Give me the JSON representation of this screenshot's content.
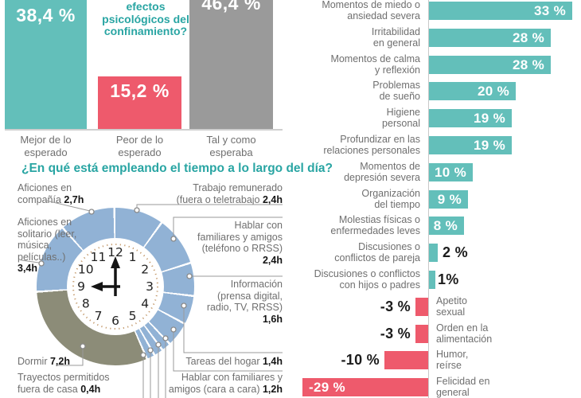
{
  "colors": {
    "teal": "#63bfba",
    "red": "#ee5a6c",
    "gray": "#9a9a9a",
    "blue": "#91b2d5",
    "olive": "#8c8c78",
    "title_teal": "#29a5a3",
    "label_gray": "#6f6f6f",
    "axis_gray": "#c9c9c9"
  },
  "chart_data": [
    {
      "type": "bar",
      "title_visible_lines": [
        "efectos",
        "psicológicos del",
        "confinamiento?"
      ],
      "categories": [
        "Mejor de lo esperado",
        "Peor de lo esperado",
        "Tal y como esperaba"
      ],
      "category_lines": [
        [
          "Mejor de lo",
          "esperado"
        ],
        [
          "Peor de lo",
          "esperado"
        ],
        [
          "Tal y como",
          "esperaba"
        ]
      ],
      "values": [
        38.4,
        15.2,
        46.4
      ],
      "value_labels": [
        "38,4 %",
        "15,2 %",
        "46,4 %"
      ],
      "bar_colors": [
        "#63bfba",
        "#ee5a6c",
        "#9a9a9a"
      ],
      "unit": "%",
      "ylim": [
        0,
        38.4
      ]
    },
    {
      "type": "pie",
      "title": "¿En qué está empleando el tiempo a lo largo del día?",
      "unit": "h",
      "clock_time": "9:00",
      "clock_numbers": [
        "12",
        "1",
        "2",
        "3",
        "4",
        "5",
        "6",
        "7",
        "8",
        "9",
        "10",
        "11"
      ],
      "segments": [
        {
          "label": "Trabajo remunerado (fuera o teletrabajo",
          "hours": 2.4,
          "display": "2,4h",
          "color": "#91b2d5"
        },
        {
          "label": "Hablar con familiares y amigos (teléfono o RRSS)",
          "hours": 2.4,
          "display": "2,4h",
          "color": "#91b2d5"
        },
        {
          "label": "Información (prensa digital, radio, TV, RRSS)",
          "hours": 1.6,
          "display": "1,6h",
          "color": "#91b2d5"
        },
        {
          "label": "Tareas del hogar",
          "hours": 1.4,
          "display": "1,4h",
          "color": "#91b2d5"
        },
        {
          "label": "Hablar con familiares y amigos (cara a cara)",
          "hours": 1.2,
          "display": "1,2h",
          "color": "#91b2d5"
        },
        {
          "label": "",
          "hours": 0.45,
          "display": "",
          "color": "#91b2d5"
        },
        {
          "label": "",
          "hours": 0.45,
          "display": "",
          "color": "#91b2d5"
        },
        {
          "label": "Trayectos permitidos fuera de casa",
          "hours": 0.4,
          "display": "0,4h",
          "color": "#91b2d5"
        },
        {
          "label": "Dormir",
          "hours": 7.2,
          "display": "7,2h",
          "color": "#8c8c78"
        },
        {
          "label": "Aficiones en solitario (leer, música, películas..)",
          "hours": 3.4,
          "display": "3,4h",
          "color": "#91b2d5"
        },
        {
          "label": "Aficiones en compañía",
          "hours": 2.7,
          "display": "2,7h",
          "color": "#91b2d5"
        }
      ],
      "callouts": [
        {
          "lines": [
            "Aficiones en",
            "compañía **2,7h**"
          ]
        },
        {
          "lines": [
            "Aficiones en",
            "solitario (leer,",
            "música,",
            "películas..)",
            "**3,4h**"
          ]
        },
        {
          "lines": [
            "Dormir **7,2h**"
          ]
        },
        {
          "lines": [
            "Trayectos permitidos",
            "fuera de casa **0,4h**"
          ]
        },
        {
          "lines": [
            "Trabajo remunerado",
            "(fuera o teletrabajo **2,4h**"
          ]
        },
        {
          "lines": [
            "Hablar con",
            "familiares y amigos",
            "(teléfono o RRSS)",
            "**2,4h**"
          ]
        },
        {
          "lines": [
            "Información",
            "(prensa digital,",
            "radio, TV, RRSS)",
            "**1,6h**"
          ]
        },
        {
          "lines": [
            "Tareas del hogar **1,4h**"
          ]
        },
        {
          "lines": [
            "Hablar con familiares y",
            "amigos (cara a cara) **1,2h**"
          ]
        }
      ]
    },
    {
      "type": "bar",
      "orientation": "horizontal",
      "categories": [
        "Momentos de miedo o ansiedad severa",
        "Irritabilidad en general",
        "Momentos de calma y reflexión",
        "Problemas de sueño",
        "Higiene personal",
        "Profundizar en las relaciones personales",
        "Momentos de depresión severa",
        "Organización del tiempo",
        "Molestias físicas o enfermedades leves",
        "Discusiones o conflictos de pareja",
        "Discusiones o conflictos con hijos o padres",
        "Apetito sexual",
        "Orden en la alimentación",
        "Humor, reírse",
        "Felicidad en general"
      ],
      "category_lines": [
        [
          "Momentos de miedo o",
          "ansiedad severa"
        ],
        [
          "Irritabilidad",
          "en general"
        ],
        [
          "Momentos de calma",
          "y reflexión"
        ],
        [
          "Problemas",
          "de sueño"
        ],
        [
          "Higiene",
          "personal"
        ],
        [
          "Profundizar en las",
          "relaciones personales"
        ],
        [
          "Momentos de",
          "depresión severa"
        ],
        [
          "Organización",
          "del tiempo"
        ],
        [
          "Molestias físicas o",
          "enfermedades leves"
        ],
        [
          "Discusiones o",
          "conflictos de pareja"
        ],
        [
          "Discusiones o conflictos",
          "con hijos o padres"
        ],
        [
          "Apetito",
          "sexual"
        ],
        [
          "Orden en la",
          "alimentación"
        ],
        [
          "Humor,",
          "reírse"
        ],
        [
          "Felicidad en",
          "general"
        ]
      ],
      "values": [
        33,
        28,
        28,
        20,
        19,
        19,
        10,
        9,
        8,
        2,
        1,
        -3,
        -3,
        -10,
        -29
      ],
      "value_labels": [
        "33 %",
        "28 %",
        "28 %",
        "20 %",
        "19 %",
        "19 %",
        "10 %",
        "9 %",
        "8 %",
        "2 %",
        "1%",
        "-3 %",
        "-3 %",
        "-10 %",
        "-29 %"
      ],
      "positive_color": "#63bfba",
      "negative_color": "#ee5a6c",
      "unit": "%"
    }
  ]
}
